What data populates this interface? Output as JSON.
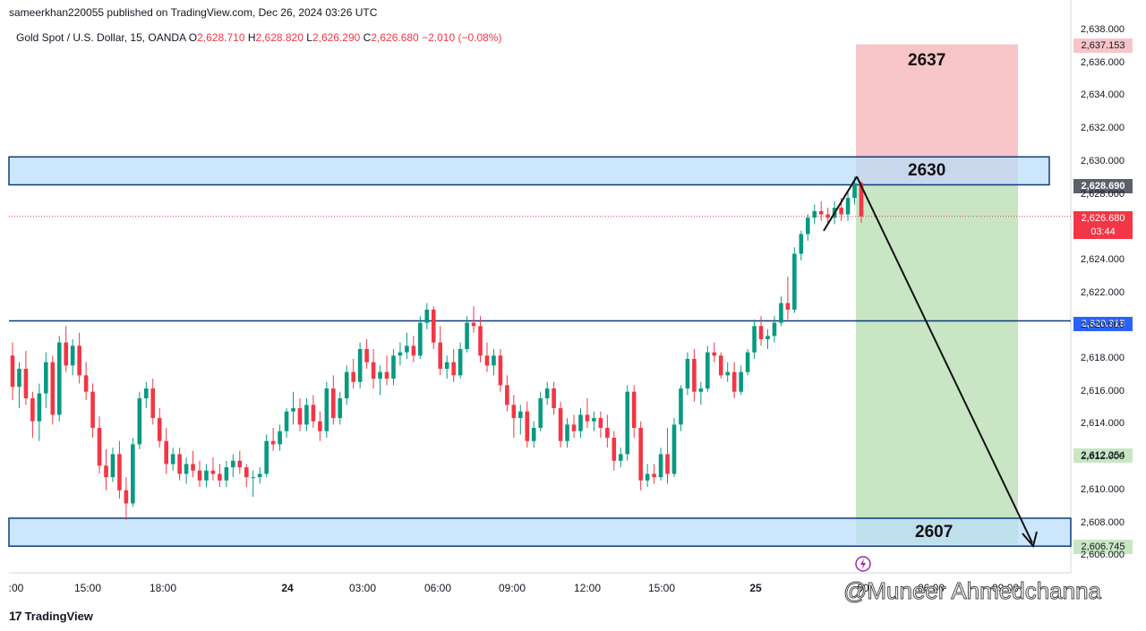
{
  "header": {
    "credit": "sameerkhan220055 published on TradingView.com, Dec 26, 2024 03:26 UTC",
    "symbol": "Gold Spot / U.S. Dollar, 15, OANDA",
    "o_label": "O",
    "o_value": "2,628.710",
    "h_label": "H",
    "h_value": "2,628.820",
    "l_label": "L",
    "l_value": "2,626.290",
    "c_label": "C",
    "c_value": "2,626.680",
    "change": "−2.010 (−0.08%)"
  },
  "zones": {
    "upper_label": "2630",
    "stop_label": "2637",
    "lower_label": "2607"
  },
  "badges": {
    "stop": "2,637.153",
    "entry": "2,628.690",
    "current": "2,626.680",
    "countdown": "03:44",
    "level": "2,620.315",
    "target": "2,612.254",
    "lower": "2,606.745"
  },
  "footer": {
    "logo_text": "TradingView",
    "watermark": "@Muneer Ahmedchanna"
  },
  "colors": {
    "up": "#089981",
    "down": "#f23645",
    "zone_fill": "#bbdefb",
    "zone_border": "#0d3b7a",
    "stop_fill": "#f7c5c8",
    "target_fill": "#c8e6c3",
    "level_line": "#2962ff"
  },
  "chart_data": {
    "type": "candlestick",
    "title": "Gold Spot / U.S. Dollar, 15, OANDA",
    "ylim": [
      2606,
      2638
    ],
    "y_ticks": [
      "2,638.000",
      "2,636.000",
      "2,634.000",
      "2,632.000",
      "2,630.000",
      "2,628.000",
      "2,624.000",
      "2,622.000",
      "2,620.000",
      "2,618.000",
      "2,616.000",
      "2,614.000",
      "2,612.000",
      "2,610.000",
      "2,608.000",
      "2,606.000"
    ],
    "x_ticks": [
      ":00",
      "15:00",
      "18:00",
      "24",
      "03:00",
      "06:00",
      "09:00",
      "12:00",
      "15:00",
      "25",
      "00",
      "06:00",
      "09:00"
    ],
    "levels": [
      {
        "name": "upper-zone",
        "from": 2628.6,
        "to": 2630.3
      },
      {
        "name": "lower-zone",
        "from": 2606.6,
        "to": 2608.3
      },
      {
        "name": "horizontal-level",
        "value": 2620.315
      }
    ],
    "position": {
      "entry": 2628.69,
      "stop": 2637.153,
      "target": 2606.745
    },
    "projection": {
      "from": 2629.1,
      "to": 2606.8
    },
    "candles": [
      [
        2618.2,
        2619.0,
        2615.5,
        2616.3
      ],
      [
        2616.3,
        2617.8,
        2615.0,
        2617.4
      ],
      [
        2617.4,
        2618.5,
        2615.2,
        2615.6
      ],
      [
        2615.6,
        2616.0,
        2613.2,
        2614.2
      ],
      [
        2614.2,
        2616.5,
        2613.0,
        2615.9
      ],
      [
        2615.9,
        2618.4,
        2615.0,
        2617.8
      ],
      [
        2617.8,
        2618.2,
        2614.0,
        2614.6
      ],
      [
        2614.6,
        2619.4,
        2614.2,
        2619.0
      ],
      [
        2619.0,
        2620.0,
        2617.2,
        2617.6
      ],
      [
        2617.6,
        2619.2,
        2617.0,
        2618.8
      ],
      [
        2618.8,
        2619.6,
        2616.5,
        2617.0
      ],
      [
        2617.0,
        2617.8,
        2615.5,
        2616.0
      ],
      [
        2616.0,
        2616.5,
        2613.2,
        2613.8
      ],
      [
        2613.8,
        2614.5,
        2611.0,
        2611.5
      ],
      [
        2611.5,
        2612.5,
        2610.0,
        2610.8
      ],
      [
        2610.8,
        2612.6,
        2610.5,
        2612.2
      ],
      [
        2612.2,
        2613.0,
        2609.5,
        2610.0
      ],
      [
        2610.0,
        2610.8,
        2608.2,
        2609.2
      ],
      [
        2609.2,
        2613.2,
        2609.0,
        2612.8
      ],
      [
        2612.8,
        2616.0,
        2612.5,
        2615.6
      ],
      [
        2615.6,
        2616.6,
        2615.0,
        2616.2
      ],
      [
        2616.2,
        2616.8,
        2614.0,
        2614.4
      ],
      [
        2614.4,
        2615.0,
        2612.6,
        2613.0
      ],
      [
        2613.0,
        2613.8,
        2611.0,
        2611.6
      ],
      [
        2611.6,
        2612.6,
        2611.2,
        2612.2
      ],
      [
        2612.2,
        2612.6,
        2610.6,
        2611.0
      ],
      [
        2611.0,
        2612.0,
        2610.4,
        2611.6
      ],
      [
        2611.6,
        2612.4,
        2610.8,
        2611.2
      ],
      [
        2611.2,
        2611.8,
        2610.2,
        2610.6
      ],
      [
        2610.6,
        2611.6,
        2610.2,
        2611.2
      ],
      [
        2611.2,
        2612.0,
        2610.6,
        2611.0
      ],
      [
        2611.0,
        2611.6,
        2610.2,
        2610.6
      ],
      [
        2610.6,
        2611.8,
        2610.2,
        2611.4
      ],
      [
        2611.4,
        2612.2,
        2610.8,
        2611.8
      ],
      [
        2611.8,
        2612.4,
        2611.0,
        2611.4
      ],
      [
        2611.4,
        2611.6,
        2610.2,
        2610.8
      ],
      [
        2610.8,
        2611.2,
        2609.6,
        2610.8
      ],
      [
        2610.8,
        2611.4,
        2610.4,
        2611.0
      ],
      [
        2611.0,
        2613.4,
        2610.8,
        2613.0
      ],
      [
        2613.0,
        2613.8,
        2612.4,
        2612.8
      ],
      [
        2612.8,
        2614.0,
        2612.4,
        2613.6
      ],
      [
        2613.6,
        2615.0,
        2613.2,
        2614.8
      ],
      [
        2614.8,
        2616.0,
        2614.0,
        2615.0
      ],
      [
        2615.0,
        2615.6,
        2613.6,
        2614.0
      ],
      [
        2614.0,
        2615.6,
        2613.6,
        2615.2
      ],
      [
        2615.2,
        2615.8,
        2613.8,
        2614.2
      ],
      [
        2614.2,
        2614.8,
        2613.0,
        2613.6
      ],
      [
        2613.6,
        2616.6,
        2613.2,
        2616.2
      ],
      [
        2616.2,
        2617.0,
        2614.0,
        2614.4
      ],
      [
        2614.4,
        2616.0,
        2614.0,
        2615.6
      ],
      [
        2615.6,
        2617.6,
        2615.2,
        2617.2
      ],
      [
        2617.2,
        2618.0,
        2616.2,
        2616.6
      ],
      [
        2616.6,
        2619.0,
        2616.2,
        2618.6
      ],
      [
        2618.6,
        2619.2,
        2617.4,
        2617.8
      ],
      [
        2617.8,
        2618.6,
        2616.2,
        2616.8
      ],
      [
        2616.8,
        2617.6,
        2615.8,
        2617.2
      ],
      [
        2617.2,
        2618.2,
        2616.4,
        2616.8
      ],
      [
        2616.8,
        2618.6,
        2616.4,
        2618.2
      ],
      [
        2618.2,
        2619.0,
        2617.6,
        2618.4
      ],
      [
        2618.4,
        2619.6,
        2618.0,
        2618.8
      ],
      [
        2618.8,
        2619.4,
        2617.8,
        2618.2
      ],
      [
        2618.2,
        2620.6,
        2618.0,
        2620.2
      ],
      [
        2620.2,
        2621.4,
        2619.8,
        2621.0
      ],
      [
        2621.0,
        2621.2,
        2618.6,
        2619.0
      ],
      [
        2619.0,
        2620.0,
        2617.0,
        2617.4
      ],
      [
        2617.4,
        2618.2,
        2616.8,
        2617.8
      ],
      [
        2617.8,
        2618.6,
        2616.6,
        2617.0
      ],
      [
        2617.0,
        2619.0,
        2616.8,
        2618.6
      ],
      [
        2618.6,
        2620.6,
        2618.4,
        2620.2
      ],
      [
        2620.2,
        2621.2,
        2619.6,
        2620.0
      ],
      [
        2620.0,
        2620.6,
        2617.8,
        2618.2
      ],
      [
        2618.2,
        2619.0,
        2617.2,
        2617.6
      ],
      [
        2617.6,
        2618.6,
        2617.0,
        2618.2
      ],
      [
        2618.2,
        2618.6,
        2616.0,
        2616.4
      ],
      [
        2616.4,
        2617.0,
        2614.8,
        2615.2
      ],
      [
        2615.2,
        2615.8,
        2613.2,
        2614.4
      ],
      [
        2614.4,
        2615.2,
        2613.4,
        2614.8
      ],
      [
        2614.8,
        2615.4,
        2612.6,
        2613.0
      ],
      [
        2613.0,
        2614.2,
        2612.6,
        2613.8
      ],
      [
        2613.8,
        2616.0,
        2613.6,
        2615.6
      ],
      [
        2615.6,
        2616.6,
        2615.2,
        2616.2
      ],
      [
        2616.2,
        2616.6,
        2614.6,
        2615.0
      ],
      [
        2615.0,
        2615.4,
        2612.6,
        2613.0
      ],
      [
        2613.0,
        2614.4,
        2612.6,
        2614.0
      ],
      [
        2614.0,
        2614.6,
        2613.2,
        2613.6
      ],
      [
        2613.6,
        2615.0,
        2613.2,
        2614.6
      ],
      [
        2614.6,
        2615.6,
        2613.8,
        2614.2
      ],
      [
        2614.2,
        2614.8,
        2613.6,
        2614.4
      ],
      [
        2614.4,
        2614.8,
        2613.2,
        2613.8
      ],
      [
        2613.8,
        2614.6,
        2612.6,
        2613.2
      ],
      [
        2613.2,
        2613.6,
        2611.2,
        2611.8
      ],
      [
        2611.8,
        2612.6,
        2611.4,
        2612.2
      ],
      [
        2612.2,
        2616.4,
        2611.8,
        2616.0
      ],
      [
        2616.0,
        2616.4,
        2613.2,
        2613.8
      ],
      [
        2613.8,
        2614.2,
        2610.0,
        2610.6
      ],
      [
        2610.6,
        2611.6,
        2610.2,
        2611.0
      ],
      [
        2611.0,
        2611.6,
        2610.4,
        2610.8
      ],
      [
        2610.8,
        2612.6,
        2610.6,
        2612.2
      ],
      [
        2612.2,
        2613.8,
        2610.4,
        2611.0
      ],
      [
        2611.0,
        2614.4,
        2610.8,
        2614.0
      ],
      [
        2614.0,
        2616.4,
        2613.6,
        2616.2
      ],
      [
        2616.2,
        2618.4,
        2615.8,
        2618.0
      ],
      [
        2618.0,
        2618.6,
        2615.4,
        2616.0
      ],
      [
        2616.0,
        2616.6,
        2615.2,
        2616.2
      ],
      [
        2616.2,
        2618.8,
        2616.0,
        2618.4
      ],
      [
        2618.4,
        2619.0,
        2617.8,
        2618.2
      ],
      [
        2618.2,
        2618.4,
        2616.8,
        2617.0
      ],
      [
        2617.0,
        2617.8,
        2616.6,
        2617.2
      ],
      [
        2617.2,
        2617.8,
        2615.6,
        2616.0
      ],
      [
        2616.0,
        2617.6,
        2615.8,
        2617.2
      ],
      [
        2617.2,
        2618.6,
        2617.0,
        2618.4
      ],
      [
        2618.4,
        2620.4,
        2618.0,
        2620.0
      ],
      [
        2620.0,
        2620.6,
        2618.8,
        2619.2
      ],
      [
        2619.2,
        2619.8,
        2618.6,
        2619.4
      ],
      [
        2619.4,
        2620.6,
        2619.0,
        2620.2
      ],
      [
        2620.2,
        2621.8,
        2620.0,
        2621.4
      ],
      [
        2621.4,
        2623.0,
        2620.4,
        2621.0
      ],
      [
        2621.0,
        2624.8,
        2620.8,
        2624.4
      ],
      [
        2624.4,
        2625.8,
        2624.0,
        2625.6
      ],
      [
        2625.6,
        2626.8,
        2625.2,
        2626.6
      ],
      [
        2626.6,
        2627.4,
        2626.2,
        2627.0
      ],
      [
        2627.0,
        2627.6,
        2626.4,
        2626.8
      ],
      [
        2626.8,
        2627.2,
        2626.2,
        2626.6
      ],
      [
        2626.6,
        2627.6,
        2626.2,
        2627.2
      ],
      [
        2627.2,
        2627.8,
        2626.4,
        2626.8
      ],
      [
        2626.8,
        2628.2,
        2626.4,
        2627.8
      ],
      [
        2627.8,
        2629.1,
        2627.4,
        2628.7
      ],
      [
        2628.71,
        2628.82,
        2626.29,
        2626.68
      ]
    ]
  }
}
